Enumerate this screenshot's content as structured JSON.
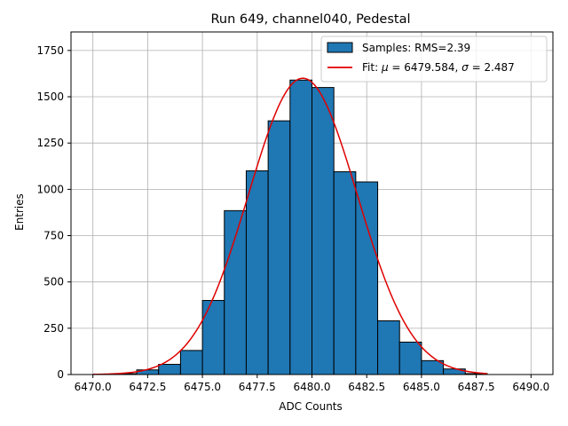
{
  "chart_data": {
    "type": "bar",
    "title": "Run 649, channel040, Pedestal",
    "xlabel": "ADC Counts",
    "ylabel": "Entries",
    "xlim": [
      6469.0,
      6491.0
    ],
    "ylim": [
      0,
      1850
    ],
    "grid": true,
    "legend_position": "top-right",
    "xticks": [
      6470.0,
      6472.5,
      6475.0,
      6477.5,
      6480.0,
      6482.5,
      6485.0,
      6487.5,
      6490.0
    ],
    "xtick_labels": [
      "6470.0",
      "6472.5",
      "6475.0",
      "6477.5",
      "6480.0",
      "6482.5",
      "6485.0",
      "6487.5",
      "6490.0"
    ],
    "yticks": [
      0,
      250,
      500,
      750,
      1000,
      1250,
      1500,
      1750
    ],
    "ytick_labels": [
      "0",
      "250",
      "500",
      "750",
      "1000",
      "1250",
      "1500",
      "1750"
    ],
    "bin_edges": [
      6470,
      6471,
      6472,
      6473,
      6474,
      6475,
      6476,
      6477,
      6478,
      6479,
      6480,
      6481,
      6482,
      6483,
      6484,
      6485,
      6486,
      6487,
      6488,
      6489,
      6490
    ],
    "counts": [
      0,
      5,
      25,
      55,
      130,
      400,
      885,
      1100,
      1370,
      1590,
      1550,
      1095,
      1040,
      290,
      175,
      75,
      30,
      5,
      0,
      0
    ],
    "bar_color": "#1f77b4",
    "fit": {
      "mu": 6479.584,
      "sigma": 2.487,
      "amplitude": 1600,
      "x_range": [
        6470,
        6488
      ],
      "color": "#e00000"
    },
    "legend": [
      {
        "label": "Samples: RMS=2.39",
        "kind": "patch",
        "color": "#1f77b4"
      },
      {
        "label_prefix": "Fit: ",
        "mu_label": "μ",
        "mu_text": " = 6479.584, ",
        "sigma_label": "σ",
        "sigma_text": " = 2.487",
        "kind": "line",
        "color": "#e00000"
      }
    ]
  }
}
